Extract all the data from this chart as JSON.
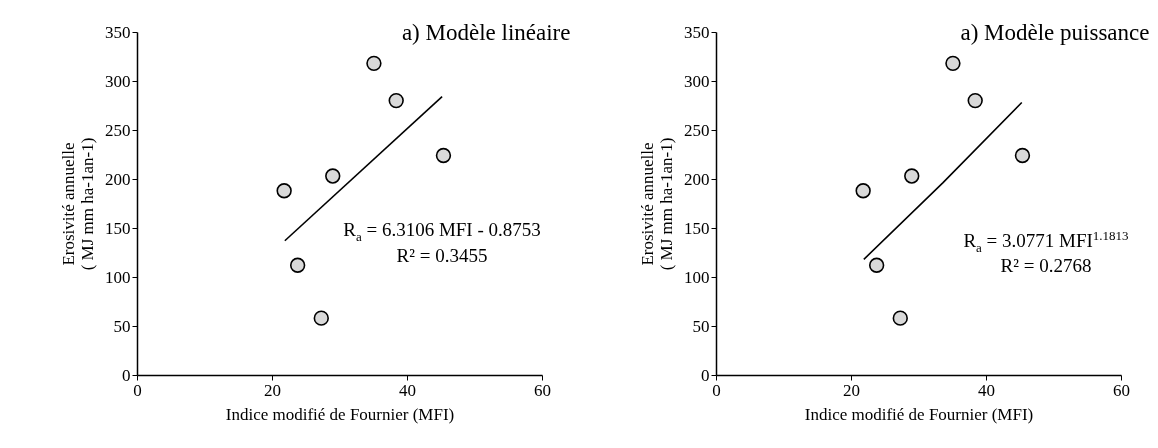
{
  "chart_data": [
    {
      "type": "scatter",
      "title": "a) Modèle linéaire",
      "xlabel": "Indice modifié de Fournier (MFI)",
      "ylabel": "Erosivité annuelle\n( MJ mm ha-1an-1)",
      "xlim": [
        0,
        60
      ],
      "xticks": [
        0,
        20,
        40,
        60
      ],
      "ylim": [
        0,
        350
      ],
      "yticks": [
        0,
        50,
        100,
        150,
        200,
        250,
        300,
        350
      ],
      "grid": false,
      "marker": "circle",
      "series": [
        {
          "type": "scatter",
          "color": "#d9d9d9",
          "x": [
            21.8,
            23.8,
            27.3,
            29.0,
            35.1,
            38.4,
            45.4
          ],
          "values": [
            188,
            112,
            58,
            203,
            318,
            280,
            224
          ]
        },
        {
          "type": "line",
          "marker": "none",
          "color": "#000000",
          "x": [
            21.9,
            45.2
          ],
          "values": [
            137,
            284
          ]
        }
      ],
      "annotations": [
        "R$_{a}$ = 6.3106 MFI - 0.8753",
        "R² = 0.3455"
      ]
    },
    {
      "type": "scatter",
      "title": "a) Modèle puissance",
      "xlabel": "Indice modifié de Fournier (MFI)",
      "ylabel": "Erosivité annuelle\n( MJ mm ha-1an-1)",
      "xlim": [
        0,
        60
      ],
      "xticks": [
        0,
        20,
        40,
        60
      ],
      "ylim": [
        0,
        350
      ],
      "yticks": [
        0,
        50,
        100,
        150,
        200,
        250,
        300,
        350
      ],
      "grid": false,
      "marker": "circle",
      "series": [
        {
          "type": "scatter",
          "color": "#d9d9d9",
          "x": [
            21.8,
            23.8,
            27.3,
            29.0,
            35.1,
            38.4,
            45.4
          ],
          "values": [
            188,
            112,
            58,
            203,
            318,
            280,
            224
          ]
        },
        {
          "type": "line",
          "marker": "none",
          "color": "#000000",
          "x": [
            21.9,
            33.6,
            45.3
          ],
          "values": [
            118,
            196,
            278
          ]
        }
      ],
      "annotations": [
        "R$_{a}$ = 3.0771 MFI$^{1.1813}$",
        "R² = 0.2768"
      ]
    }
  ]
}
